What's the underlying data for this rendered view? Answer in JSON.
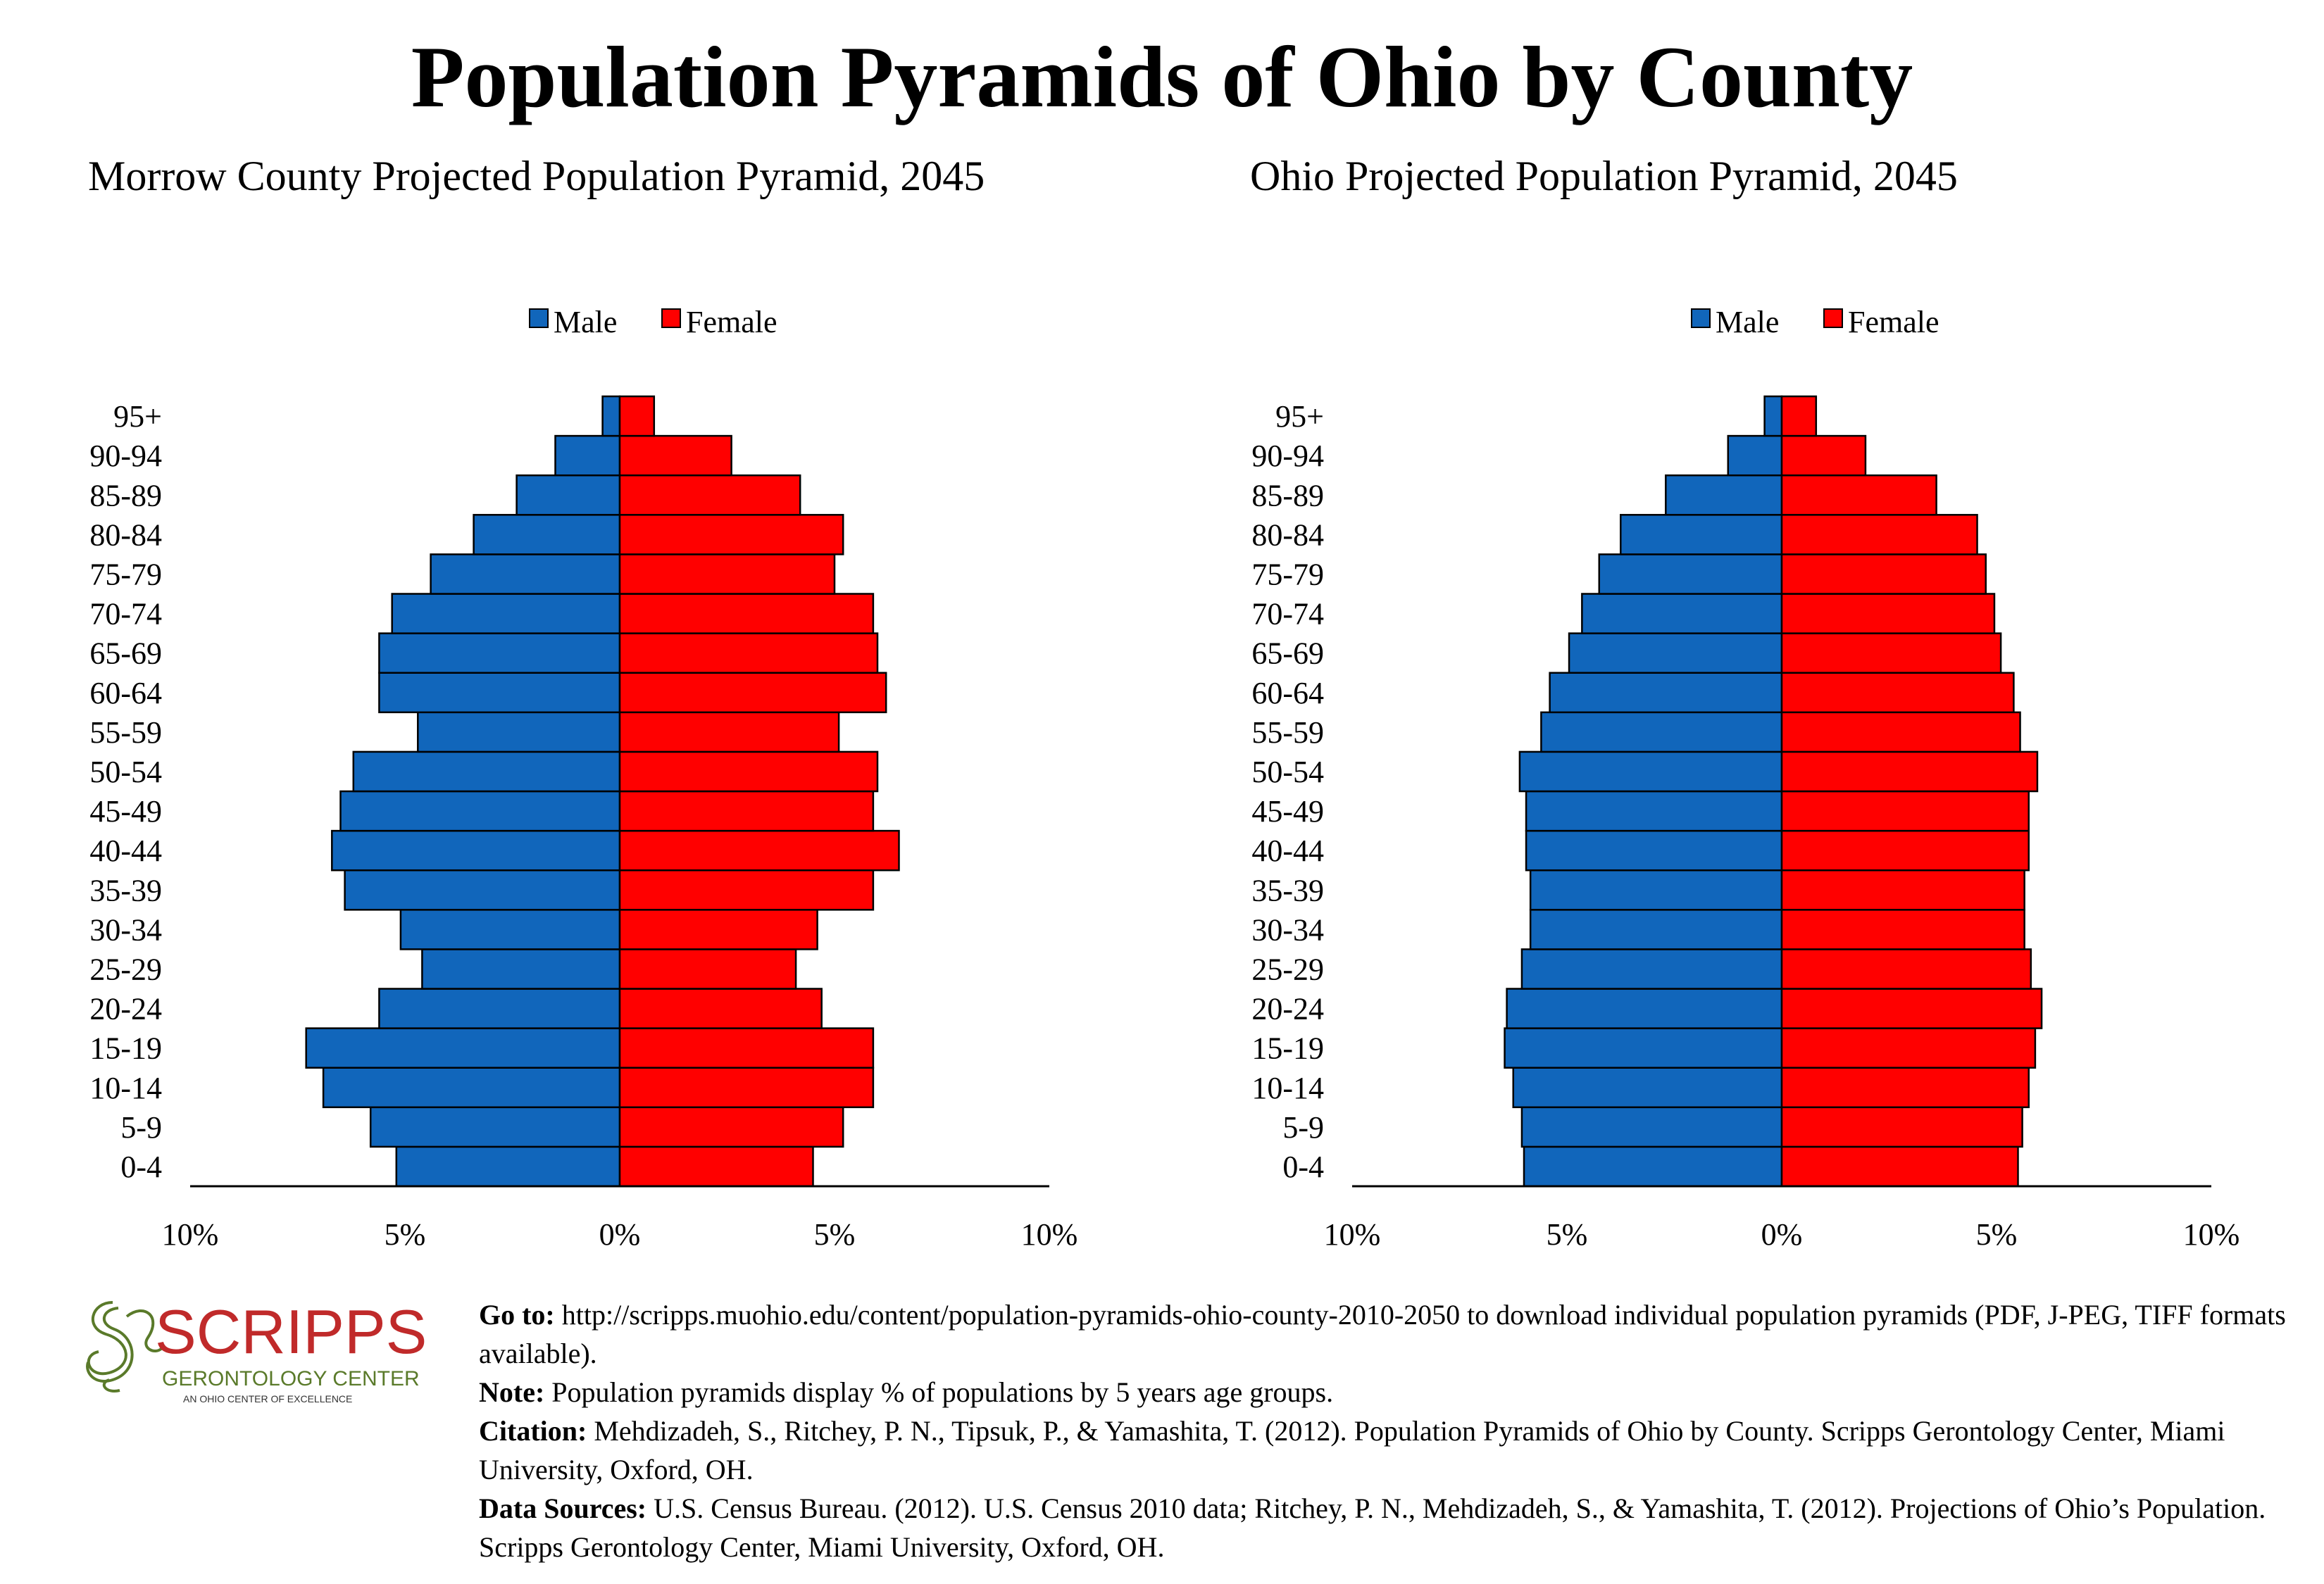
{
  "header": {
    "title": "Population Pyramids of Ohio by County"
  },
  "chart_data": [
    {
      "type": "bar",
      "orientation": "horizontal-pyramid",
      "title": "Morrow County Projected Population Pyramid, 2045",
      "categories": [
        "0-4",
        "5-9",
        "10-14",
        "15-19",
        "20-24",
        "25-29",
        "30-34",
        "35-39",
        "40-44",
        "45-49",
        "50-54",
        "55-59",
        "60-64",
        "65-69",
        "70-74",
        "75-79",
        "80-84",
        "85-89",
        "90-94",
        "95+"
      ],
      "series": [
        {
          "name": "Male",
          "color": "#1166bb",
          "values": [
            5.2,
            5.8,
            6.9,
            7.3,
            5.6,
            4.6,
            5.1,
            6.4,
            6.7,
            6.5,
            6.2,
            4.7,
            5.6,
            5.6,
            5.3,
            4.4,
            3.4,
            2.4,
            1.5,
            0.4
          ]
        },
        {
          "name": "Female",
          "color": "#ff0000",
          "values": [
            4.5,
            5.2,
            5.9,
            5.9,
            4.7,
            4.1,
            4.6,
            5.9,
            6.5,
            5.9,
            6.0,
            5.1,
            6.2,
            6.0,
            5.9,
            5.0,
            5.2,
            4.2,
            2.6,
            0.8
          ]
        }
      ],
      "xlim": [
        -10,
        10
      ],
      "x_ticks": [
        "10%",
        "5%",
        "0%",
        "5%",
        "10%"
      ],
      "legend": "top-center"
    },
    {
      "type": "bar",
      "orientation": "horizontal-pyramid",
      "title": "Ohio Projected Population Pyramid, 2045",
      "categories": [
        "0-4",
        "5-9",
        "10-14",
        "15-19",
        "20-24",
        "25-29",
        "30-34",
        "35-39",
        "40-44",
        "45-49",
        "50-54",
        "55-59",
        "60-64",
        "65-69",
        "70-74",
        "75-79",
        "80-84",
        "85-89",
        "90-94",
        "95+"
      ],
      "series": [
        {
          "name": "Male",
          "color": "#1166bb",
          "values": [
            6.0,
            6.05,
            6.25,
            6.45,
            6.4,
            6.05,
            5.85,
            5.85,
            5.95,
            5.95,
            6.1,
            5.6,
            5.4,
            4.95,
            4.65,
            4.25,
            3.75,
            2.7,
            1.25,
            0.4
          ]
        },
        {
          "name": "Female",
          "color": "#ff0000",
          "values": [
            5.5,
            5.6,
            5.75,
            5.9,
            6.05,
            5.8,
            5.65,
            5.65,
            5.75,
            5.75,
            5.95,
            5.55,
            5.4,
            5.1,
            4.95,
            4.75,
            4.55,
            3.6,
            1.95,
            0.8
          ]
        }
      ],
      "xlim": [
        -10,
        10
      ],
      "x_ticks": [
        "10%",
        "5%",
        "0%",
        "5%",
        "10%"
      ],
      "legend": "top-center"
    }
  ],
  "footer": {
    "logo": {
      "name": "SCRIPPS",
      "sub": "GERONTOLOGY CENTER",
      "tagline": "AN OHIO CENTER OF EXCELLENCE"
    },
    "goto_label": "Go to:",
    "goto_text": "http://scripps.muohio.edu/content/population-pyramids-ohio-county-2010-2050 to download individual population pyramids (PDF, J-PEG, TIFF formats available).",
    "note_label": "Note:",
    "note_text": "Population pyramids display % of populations by 5 years age groups.",
    "citation_label": "Citation:",
    "citation_text": "Mehdizadeh, S., Ritchey, P. N., Tipsuk, P., & Yamashita, T. (2012). Population Pyramids of Ohio by County. Scripps Gerontology Center, Miami University, Oxford, OH.",
    "sources_label": "Data Sources:",
    "sources_text": "U.S. Census Bureau. (2012). U.S. Census 2010 data; Ritchey, P. N., Mehdizadeh, S., & Yamashita, T. (2012). Projections of Ohio’s Population. Scripps Gerontology Center, Miami University, Oxford, OH."
  }
}
